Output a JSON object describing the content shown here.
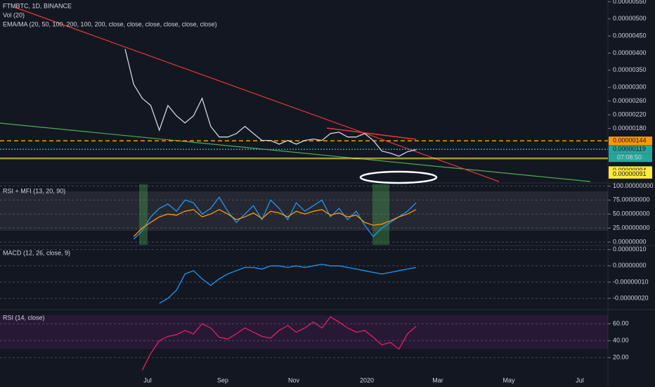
{
  "header": {
    "symbol": "FTMBTC, 1D, BINANCE",
    "volume": "Vol (20)",
    "ema_ma": "EMA/MA (20, 50, 100, 200, 100, 200, close, close, close, close, close, close)"
  },
  "countdown": "07:08:50",
  "time_axis": [
    "Jul",
    "Sep",
    "Nov",
    "2020",
    "Mar",
    "May",
    "Jul"
  ],
  "chart_data": [
    {
      "type": "line",
      "top": 0,
      "ylim": [
        2.5e-07,
        5.55e-06
      ],
      "yticks": [
        {
          "value": 5.5e-06,
          "label": "0.00000550"
        },
        {
          "value": 5e-06,
          "label": "0.00000500"
        },
        {
          "value": 4.5e-06,
          "label": "0.00000450"
        },
        {
          "value": 4e-06,
          "label": "0.00000400"
        },
        {
          "value": 3.5e-06,
          "label": "0.00000350"
        },
        {
          "value": 3e-06,
          "label": "0.00000300"
        },
        {
          "value": 2.6e-06,
          "label": "0.00000260"
        },
        {
          "value": 2.2e-06,
          "label": "0.00000220"
        },
        {
          "value": 1.8e-06,
          "label": "0.00000180"
        }
      ],
      "price_lines": [
        {
          "value": 1.44e-06,
          "label": "0.00000144",
          "color": "#ff9800"
        },
        {
          "value": 1.19e-06,
          "label": "0.00000119",
          "color": "#26a69a"
        },
        {
          "value": 9.4e-07,
          "label": "0.00000094",
          "color": "#ffeb3b"
        },
        {
          "value": 9.1e-07,
          "label": "0.00000091",
          "color": "#ffeb3b"
        }
      ],
      "series": [
        {
          "color": "#d1d4dc",
          "values": [
            4.12e-06,
            3.09e-06,
            2.68e-06,
            2.47e-06,
            1.75e-06,
            2.47e-06,
            2.17e-06,
            1.96e-06,
            2.17e-06,
            2.68e-06,
            1.86e-06,
            1.55e-06,
            1.55e-06,
            1.65e-06,
            1.86e-06,
            1.65e-06,
            1.45e-06,
            1.45e-06,
            1.34e-06,
            1.45e-06,
            1.34e-06,
            1.45e-06,
            1.49e-06,
            1.45e-06,
            1.65e-06,
            1.69e-06,
            1.55e-06,
            1.55e-06,
            1.65e-06,
            1.45e-06,
            1.14e-06,
            1.08e-06,
            9.9e-07,
            1.12e-06,
            1.18e-06
          ]
        }
      ]
    },
    {
      "type": "line",
      "title": "RSI + MFI (13, 20, 90)",
      "top": 262,
      "bottom": 348,
      "ylim": [
        -5,
        103
      ],
      "yticks": [
        {
          "value": 100,
          "label": "100.00000000"
        },
        {
          "value": 75,
          "label": "75.00000000"
        },
        {
          "value": 50,
          "label": "50.00000000"
        },
        {
          "value": 25,
          "label": "25.00000000"
        },
        {
          "value": 0,
          "label": "0.00000000"
        }
      ],
      "series": [
        {
          "color": "#2196f3",
          "values": [
            null,
            5,
            20,
            45,
            60,
            68,
            55,
            75,
            70,
            50,
            60,
            80,
            55,
            35,
            50,
            65,
            40,
            75,
            60,
            40,
            70,
            55,
            65,
            75,
            45,
            60,
            40,
            55,
            30,
            10,
            25,
            35,
            45,
            55,
            70
          ]
        },
        {
          "color": "#ff9800",
          "values": [
            null,
            10,
            25,
            35,
            45,
            50,
            48,
            55,
            58,
            45,
            50,
            58,
            50,
            40,
            45,
            52,
            42,
            55,
            52,
            45,
            55,
            50,
            55,
            58,
            48,
            52,
            45,
            48,
            35,
            30,
            32,
            38,
            45,
            50,
            58
          ]
        }
      ]
    },
    {
      "type": "line",
      "title": "MACD (12, 26, close, 9)",
      "top": 350,
      "bottom": 438,
      "ylim": [
        -2.6e-07,
        1.2e-07
      ],
      "yticks": [
        {
          "value": 1e-07,
          "label": "0.00000010"
        },
        {
          "value": 0,
          "label": "0.00000000"
        },
        {
          "value": -1e-07,
          "label": "-0.00000010"
        },
        {
          "value": -2e-07,
          "label": "-0.00000020"
        }
      ],
      "series": [
        {
          "color": "#2196f3",
          "values": [
            null,
            null,
            null,
            null,
            -2.3e-07,
            -2e-07,
            -1.5e-07,
            -5e-08,
            -3e-08,
            -8e-08,
            -1.2e-07,
            -8e-08,
            -5e-08,
            -3e-08,
            -1e-08,
            -1e-08,
            -2e-08,
            0,
            0,
            -1e-08,
            0,
            -1e-08,
            0,
            1e-08,
            0,
            0,
            -1e-08,
            -2e-08,
            -3e-08,
            -4e-08,
            -5e-08,
            -4e-08,
            -3e-08,
            -2e-08,
            -1e-08
          ]
        }
      ]
    },
    {
      "type": "line",
      "title": "RSI (14, close)",
      "top": 442,
      "bottom": 548,
      "ylim": [
        -13,
        75
      ],
      "yticks": [
        {
          "value": 60,
          "label": "60.00"
        },
        {
          "value": 40,
          "label": "40.00"
        },
        {
          "value": 20,
          "label": "20.00"
        }
      ],
      "series": [
        {
          "color": "#e91e63",
          "values": [
            null,
            null,
            5,
            25,
            40,
            45,
            47,
            52,
            48,
            60,
            55,
            44,
            42,
            48,
            55,
            50,
            45,
            43,
            52,
            58,
            50,
            55,
            62,
            55,
            68,
            62,
            55,
            50,
            52,
            44,
            35,
            38,
            30,
            48,
            57
          ]
        }
      ]
    }
  ]
}
